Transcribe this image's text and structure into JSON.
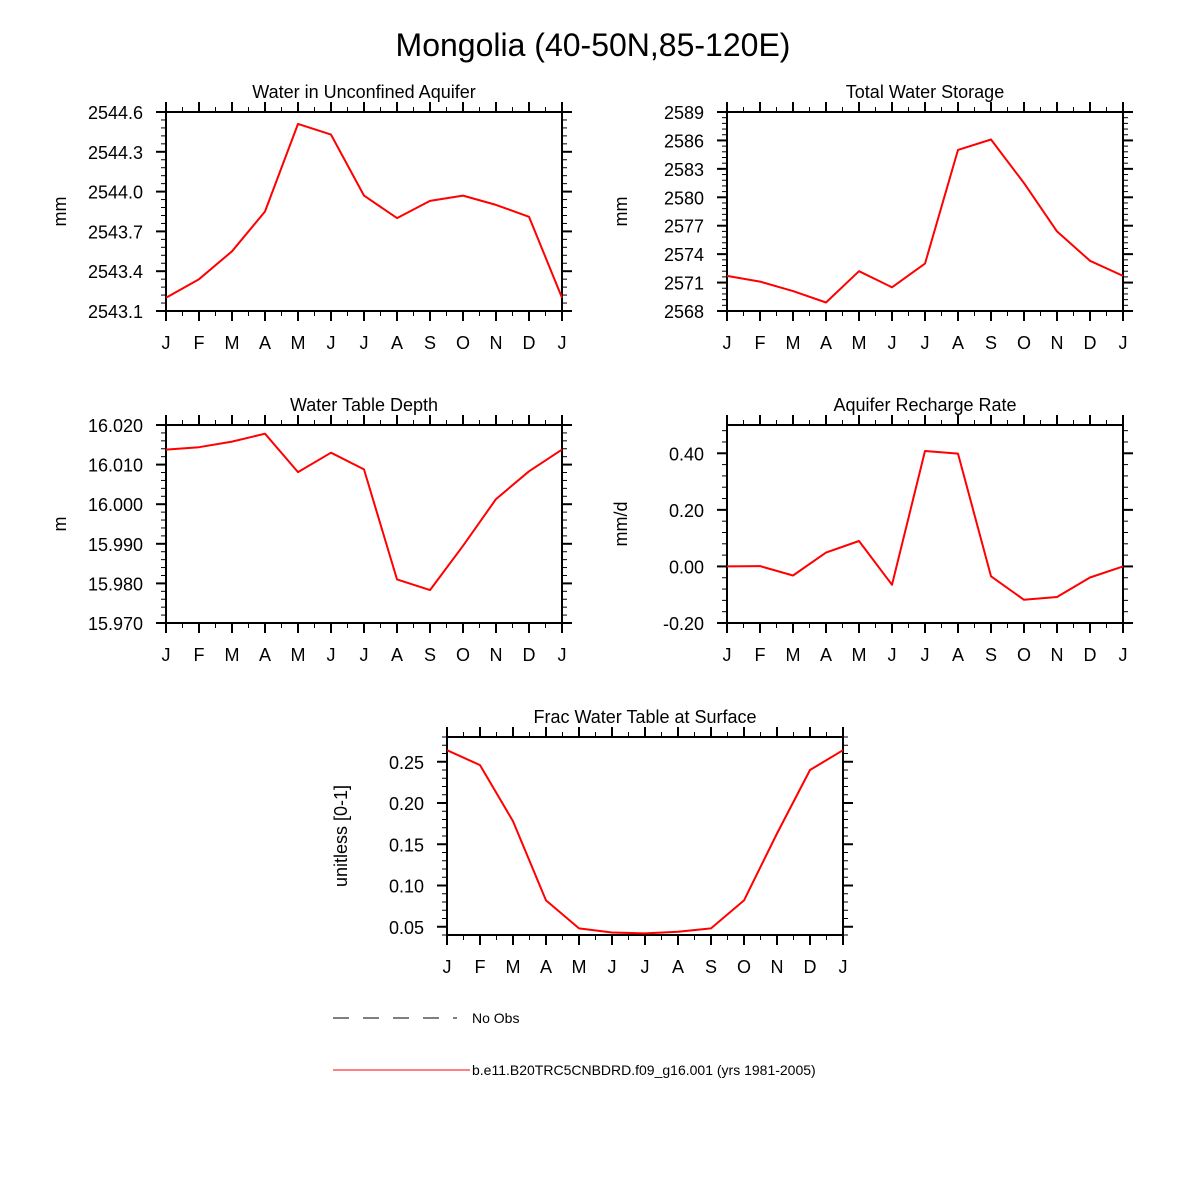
{
  "figure": {
    "title": "Mongolia (40-50N,85-120E)"
  },
  "legend": {
    "items": [
      {
        "label": "No Obs",
        "style": "dashed",
        "color": "#000000"
      },
      {
        "label": "b.e11.B20TRC5CNBDRD.f09_g16.001 (yrs 1981-2005)",
        "style": "solid",
        "color": "#ff0000"
      }
    ]
  },
  "chart_data": [
    {
      "type": "line",
      "title": "Water in Unconfined Aquifer",
      "ylabel": "mm",
      "xlabel": "",
      "categories": [
        "J",
        "F",
        "M",
        "A",
        "M",
        "J",
        "J",
        "A",
        "S",
        "O",
        "N",
        "D",
        "J"
      ],
      "ylim": [
        2543.1,
        2544.6
      ],
      "yticks": [
        2543.1,
        2543.4,
        2543.7,
        2544.0,
        2544.3,
        2544.6
      ],
      "ytick_labels": [
        "2543.1",
        "2543.4",
        "2543.7",
        "2544.0",
        "2544.3",
        "2544.6"
      ],
      "series": [
        {
          "name": "b.e11.B20TRC5CNBDRD.f09_g16.001 (yrs 1981-2005)",
          "color": "#ff0000",
          "values": [
            2543.2,
            2543.34,
            2543.55,
            2543.85,
            2544.51,
            2544.43,
            2543.97,
            2543.8,
            2543.93,
            2543.97,
            2543.9,
            2543.81,
            2543.2
          ]
        }
      ]
    },
    {
      "type": "line",
      "title": "Total Water Storage",
      "ylabel": "mm",
      "xlabel": "",
      "categories": [
        "J",
        "F",
        "M",
        "A",
        "M",
        "J",
        "J",
        "A",
        "S",
        "O",
        "N",
        "D",
        "J"
      ],
      "ylim": [
        2568,
        2589
      ],
      "yticks": [
        2568,
        2571,
        2574,
        2577,
        2580,
        2583,
        2586,
        2589
      ],
      "ytick_labels": [
        "2568",
        "2571",
        "2574",
        "2577",
        "2580",
        "2583",
        "2586",
        "2589"
      ],
      "series": [
        {
          "name": "b.e11.B20TRC5CNBDRD.f09_g16.001 (yrs 1981-2005)",
          "color": "#ff0000",
          "values": [
            2571.7,
            2571.1,
            2570.1,
            2568.9,
            2572.2,
            2570.5,
            2573.0,
            2585.0,
            2586.1,
            2581.5,
            2576.4,
            2573.3,
            2571.7
          ]
        }
      ]
    },
    {
      "type": "line",
      "title": "Water Table Depth",
      "ylabel": "m",
      "xlabel": "",
      "categories": [
        "J",
        "F",
        "M",
        "A",
        "M",
        "J",
        "J",
        "A",
        "S",
        "O",
        "N",
        "D",
        "J"
      ],
      "ylim": [
        15.97,
        16.02
      ],
      "yticks": [
        15.97,
        15.98,
        15.99,
        16.0,
        16.01,
        16.02
      ],
      "ytick_labels": [
        "15.970",
        "15.980",
        "15.990",
        "16.000",
        "16.010",
        "16.020"
      ],
      "series": [
        {
          "name": "b.e11.B20TRC5CNBDRD.f09_g16.001 (yrs 1981-2005)",
          "color": "#ff0000",
          "values": [
            16.0138,
            16.0144,
            16.0158,
            16.0178,
            16.0081,
            16.013,
            16.0088,
            15.981,
            15.9783,
            15.9895,
            16.0013,
            16.0083,
            16.0138
          ]
        }
      ]
    },
    {
      "type": "line",
      "title": "Aquifer Recharge Rate",
      "ylabel": "mm/d",
      "xlabel": "",
      "categories": [
        "J",
        "F",
        "M",
        "A",
        "M",
        "J",
        "J",
        "A",
        "S",
        "O",
        "N",
        "D",
        "J"
      ],
      "ylim": [
        -0.2,
        0.5
      ],
      "yticks": [
        -0.2,
        0.0,
        0.2,
        0.4
      ],
      "ytick_labels": [
        "-0.20",
        "0.00",
        "0.20",
        "0.40"
      ],
      "series": [
        {
          "name": "b.e11.B20TRC5CNBDRD.f09_g16.001 (yrs 1981-2005)",
          "color": "#ff0000",
          "values": [
            0.0,
            0.001,
            -0.032,
            0.049,
            0.09,
            -0.065,
            0.408,
            0.399,
            -0.035,
            -0.118,
            -0.108,
            -0.039,
            0.0
          ]
        }
      ]
    },
    {
      "type": "line",
      "title": "Frac Water Table at Surface",
      "ylabel": "unitless [0-1]",
      "xlabel": "",
      "categories": [
        "J",
        "F",
        "M",
        "A",
        "M",
        "J",
        "J",
        "A",
        "S",
        "O",
        "N",
        "D",
        "J"
      ],
      "ylim": [
        0.04,
        0.28
      ],
      "yticks": [
        0.05,
        0.1,
        0.15,
        0.2,
        0.25
      ],
      "ytick_labels": [
        "0.05",
        "0.10",
        "0.15",
        "0.20",
        "0.25"
      ],
      "series": [
        {
          "name": "b.e11.B20TRC5CNBDRD.f09_g16.001 (yrs 1981-2005)",
          "color": "#ff0000",
          "values": [
            0.264,
            0.246,
            0.178,
            0.082,
            0.048,
            0.043,
            0.042,
            0.044,
            0.048,
            0.082,
            0.163,
            0.24,
            0.264
          ]
        }
      ]
    }
  ]
}
